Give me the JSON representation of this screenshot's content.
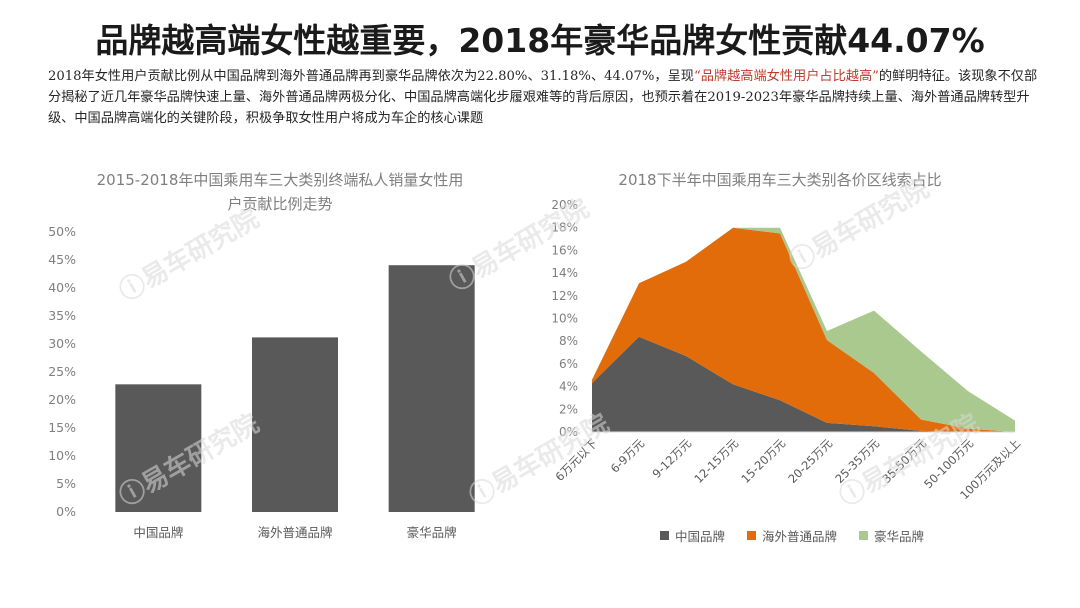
{
  "headline": "品牌越高端女性越重要，2018年豪华品牌女性贡献44.07%",
  "description": {
    "part1": "2018年女性用户贡献比例从中国品牌到海外普通品牌再到豪华品牌依次为22.80%、31.18%、44.07%，呈现",
    "highlight": "“品牌越高端女性用户占比越高”",
    "part2": "的鲜明特征。该现象不仅部分揭秘了近几年豪华品牌快速上量、海外普通品牌两极分化、中国品牌高端化步履艰难等的背后原因，也预示着在2019-2023年豪华品牌持续上量、海外普通品牌转型升级、中国品牌高端化的关键阶段，积极争取女性用户将成为车企的核心课题"
  },
  "watermark_text": "易车研究院",
  "chart_data": [
    {
      "type": "bar",
      "title_line1": "2015-2018年中国乘用车三大类别终端私人销量女性用",
      "title_line2": "户贡献比例走势",
      "categories": [
        "中国品牌",
        "海外普通品牌",
        "豪华品牌"
      ],
      "values": [
        22.8,
        31.18,
        44.07
      ],
      "ylim": [
        0,
        50
      ],
      "yticks": [
        "0%",
        "5%",
        "10%",
        "15%",
        "20%",
        "25%",
        "30%",
        "35%",
        "40%",
        "45%",
        "50%"
      ],
      "color": "#595959",
      "grid": false
    },
    {
      "type": "area",
      "stacked": true,
      "title": "2018下半年中国乘用车三大类别各价区线索占比",
      "categories": [
        "6万元以下",
        "6-9万元",
        "9-12万元",
        "12-15万元",
        "15-20万元",
        "20-25万元",
        "25-35万元",
        "35-50万元",
        "50-100万元",
        "100万元及以上"
      ],
      "ylim": [
        0,
        20
      ],
      "yticks": [
        "0%",
        "2%",
        "4%",
        "6%",
        "8%",
        "10%",
        "12%",
        "14%",
        "16%",
        "18%",
        "20%"
      ],
      "series": [
        {
          "name": "中国品牌",
          "color": "#595959",
          "values": [
            4.3,
            8.4,
            6.7,
            4.2,
            2.8,
            0.8,
            0.5,
            0.1,
            0.0,
            0.0
          ]
        },
        {
          "name": "海外普通品牌",
          "color": "#e26b0a",
          "values": [
            0.3,
            4.7,
            8.3,
            13.8,
            14.7,
            7.3,
            4.7,
            1.0,
            0.3,
            0.0
          ]
        },
        {
          "name": "豪华品牌",
          "color": "#a9c98f",
          "values": [
            0.0,
            0.0,
            0.0,
            0.0,
            0.5,
            0.8,
            5.5,
            6.0,
            3.3,
            1.0
          ]
        }
      ]
    }
  ]
}
